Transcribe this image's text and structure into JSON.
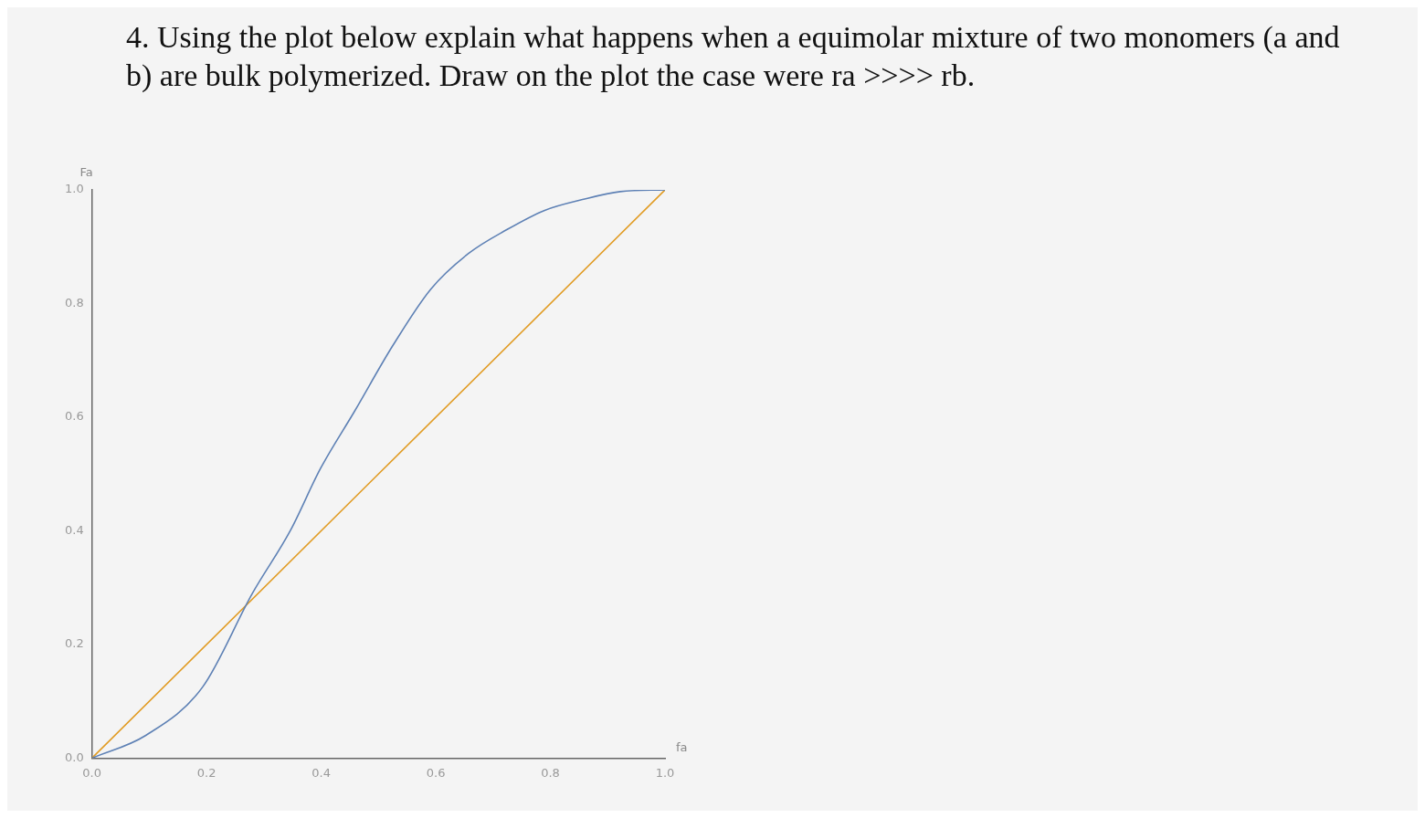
{
  "chart_data": {
    "type": "line",
    "title": "4. Using the plot below explain what happens when a equimolar mixture of two monomers (a and b) are bulk polymerized. Draw on the plot the case were ra >>>> rb.",
    "xlabel": "fa",
    "ylabel": "Fa",
    "series": [
      {
        "color": "#5e81b5",
        "x": [
          0,
          0.094,
          0.193,
          0.28,
          0.346,
          0.399,
          0.458,
          0.525,
          0.591,
          0.657,
          0.724,
          0.79,
          0.856,
          0.922,
          1
        ],
        "values": [
          0,
          0.04,
          0.125,
          0.29,
          0.4,
          0.51,
          0.61,
          0.726,
          0.825,
          0.888,
          0.93,
          0.964,
          0.983,
          0.997,
          1
        ]
      },
      {
        "color": "#e19c24",
        "x": [
          0,
          1
        ],
        "values": [
          0,
          1
        ]
      }
    ],
    "xlim": [
      0,
      1
    ],
    "ylim": [
      0,
      1
    ],
    "xticks": [
      {
        "value": 0,
        "label": "0.0"
      },
      {
        "value": 0.2,
        "label": "0.2"
      },
      {
        "value": 0.4,
        "label": "0.4"
      },
      {
        "value": 0.6,
        "label": "0.6"
      },
      {
        "value": 0.8,
        "label": "0.8"
      },
      {
        "value": 1,
        "label": "1.0"
      }
    ],
    "yticks": [
      {
        "value": 0,
        "label": "0.0"
      },
      {
        "value": 0.2,
        "label": "0.2"
      },
      {
        "value": 0.4,
        "label": "0.4"
      },
      {
        "value": 0.6,
        "label": "0.6"
      },
      {
        "value": 0.8,
        "label": "0.8"
      },
      {
        "value": 1,
        "label": "1.0"
      }
    ],
    "grid": false,
    "legend": false,
    "marker": "none",
    "line_style": "solid"
  }
}
